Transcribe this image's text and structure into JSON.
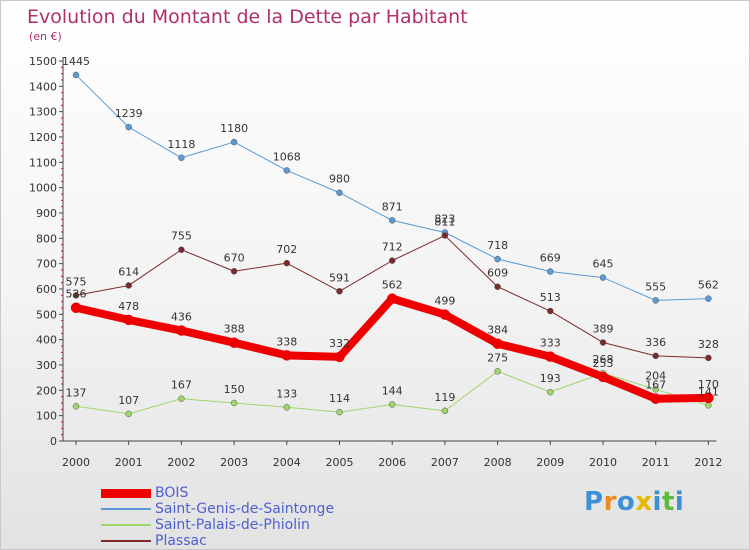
{
  "title": "Evolution du Montant de la Dette par Habitant",
  "subtitle": "(en €)",
  "logo": {
    "letters": [
      "P",
      "r",
      "o",
      "x",
      "i",
      "t",
      "i"
    ],
    "colors": [
      "#3d8fd6",
      "#f08a1c",
      "#3d8fd6",
      "#e6b800",
      "#3d8fd6",
      "#5dbb3a",
      "#3d8fd6"
    ]
  },
  "chart_data": {
    "type": "line",
    "categories": [
      "2000",
      "2001",
      "2002",
      "2003",
      "2004",
      "2005",
      "2006",
      "2007",
      "2008",
      "2009",
      "2010",
      "2011",
      "2012"
    ],
    "ylim": [
      0,
      1500
    ],
    "yticks": [
      0,
      100,
      200,
      300,
      400,
      500,
      600,
      700,
      800,
      900,
      1000,
      1100,
      1200,
      1300,
      1400,
      1500
    ],
    "grid": false,
    "legend_position": "bottom-left",
    "series": [
      {
        "name": "Saint-Genis-de-Saintonge",
        "color": "#5a9ad6",
        "width": 1,
        "values": [
          1445,
          1239,
          1118,
          1180,
          1068,
          980,
          871,
          823,
          718,
          669,
          645,
          555,
          562
        ]
      },
      {
        "name": "Plassac",
        "color": "#7a2a2a",
        "width": 1,
        "values": [
          575,
          614,
          755,
          670,
          702,
          591,
          712,
          811,
          609,
          513,
          389,
          336,
          328
        ]
      },
      {
        "name": "Saint-Palais-de-Phiolin",
        "color": "#9ed66a",
        "width": 1,
        "values": [
          137,
          107,
          167,
          150,
          133,
          114,
          144,
          119,
          275,
          193,
          268,
          204,
          141
        ]
      },
      {
        "name": "BOIS",
        "color": "#ee0000",
        "width": 8,
        "values": [
          526,
          478,
          436,
          388,
          338,
          332,
          562,
          499,
          384,
          333,
          253,
          167,
          170
        ]
      }
    ],
    "legend_order": [
      "BOIS",
      "Saint-Genis-de-Saintonge",
      "Saint-Palais-de-Phiolin",
      "Plassac"
    ]
  }
}
